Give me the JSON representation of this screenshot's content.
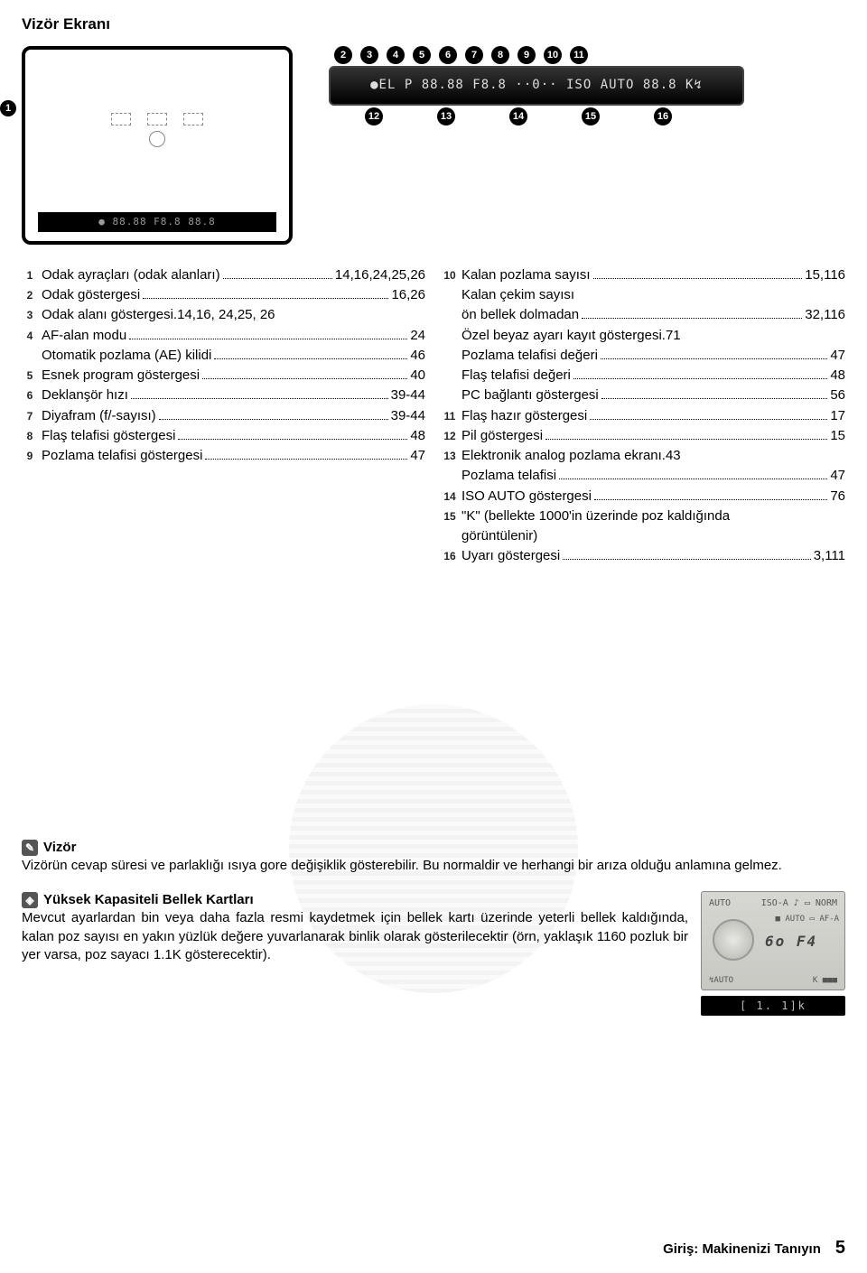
{
  "title": "Vizör Ekranı",
  "viewfinder_strip": "● 88.88 F8.8  88.8",
  "top_panel_text": "●EL P 88.88 F8.8  ··0··  ISO AUTO 88.8 K↯",
  "top_markers": [
    "2",
    "3",
    "4",
    "5",
    "6",
    "7",
    "8",
    "9",
    "10",
    "11"
  ],
  "bot_markers": [
    "12",
    "13",
    "14",
    "15",
    "16"
  ],
  "left_col": [
    {
      "n": "1",
      "label": "Odak ayraçları (odak alanları)",
      "pg": "14,16,24,25,26"
    },
    {
      "n": "2",
      "label": "Odak göstergesi",
      "pg": "16,26"
    },
    {
      "n": "3",
      "label": "Odak alanı göstergesi.",
      "pg": "14,16, 24,25, 26",
      "nodots": true
    },
    {
      "n": "4",
      "label": "AF-alan modu",
      "pg": "24"
    },
    {
      "n": "",
      "label": "Otomatik pozlama (AE) kilidi",
      "pg": "46"
    },
    {
      "n": "5",
      "label": "Esnek program göstergesi",
      "pg": "40"
    },
    {
      "n": "6",
      "label": "Deklanşör hızı",
      "pg": "39-44"
    },
    {
      "n": "7",
      "label": "Diyafram (f/-sayısı)",
      "pg": "39-44"
    },
    {
      "n": "8",
      "label": "Flaş telafisi göstergesi",
      "pg": "48"
    },
    {
      "n": "9",
      "label": "Pozlama telafisi göstergesi",
      "pg": "47"
    }
  ],
  "right_col": [
    {
      "n": "10",
      "label": "Kalan pozlama sayısı",
      "pg": "15,116"
    },
    {
      "n": "",
      "label": "Kalan çekim sayısı",
      "pg": "",
      "noline": true
    },
    {
      "n": "",
      "label": "ön bellek dolmadan",
      "pg": "32,116"
    },
    {
      "n": "",
      "label": "Özel beyaz ayarı kayıt göstergesi",
      "pg": ".71",
      "nodots": true
    },
    {
      "n": "",
      "label": "Pozlama telafisi değeri",
      "pg": "47"
    },
    {
      "n": "",
      "label": "Flaş telafisi değeri",
      "pg": "48"
    },
    {
      "n": "",
      "label": "PC bağlantı göstergesi",
      "pg": "56"
    },
    {
      "n": "11",
      "label": "Flaş hazır göstergesi",
      "pg": "17"
    },
    {
      "n": "12",
      "label": "Pil göstergesi",
      "pg": "15"
    },
    {
      "n": "13",
      "label": "Elektronik analog pozlama ekranı",
      "pg": ".43",
      "nodots": true
    },
    {
      "n": "",
      "label": "Pozlama telafisi",
      "pg": "47"
    },
    {
      "n": "14",
      "label": "ISO AUTO göstergesi",
      "pg": "76"
    },
    {
      "n": "15",
      "label": "\"K\" (bellekte 1000'in üzerinde poz kaldığında",
      "pg": "",
      "noline": true
    },
    {
      "n": "",
      "label": "görüntülenir)",
      "pg": "",
      "noline": true
    },
    {
      "n": "16",
      "label": "Uyarı göstergesi",
      "pg": "3,111"
    }
  ],
  "note1": {
    "title": "Vizör",
    "body": "Vizörün cevap süresi ve parlaklığı ısıya gore değişiklik gösterebilir. Bu normaldir ve herhangi bir arıza olduğu anlamına gelmez."
  },
  "note2": {
    "title": "Yüksek Kapasiteli Bellek Kartları",
    "body": "Mevcut ayarlardan bin veya daha fazla resmi kaydetmek için bellek kartı üzerinde yeterli bellek kaldığında, kalan poz sayısı en yakın yüzlük değere yuvarlanarak binlik olarak gösterilecektir (örn, yaklaşık 1160 pozluk bir yer varsa, poz sayacı 1.1K gösterecektir)."
  },
  "lcd": {
    "row1_left": "AUTO",
    "row1_mid": "ISO-A   ♪  ▭  NORM",
    "center": "6o  F4",
    "right_items": "■\nAUTO\n▭\nAF-A",
    "bottom_left": "↯AUTO",
    "bottom_right": "K\n■■■",
    "strip": "[  1. 1]k"
  },
  "footer": {
    "label": "Giriş: Makinenizi Tanıyın",
    "page": "5"
  }
}
